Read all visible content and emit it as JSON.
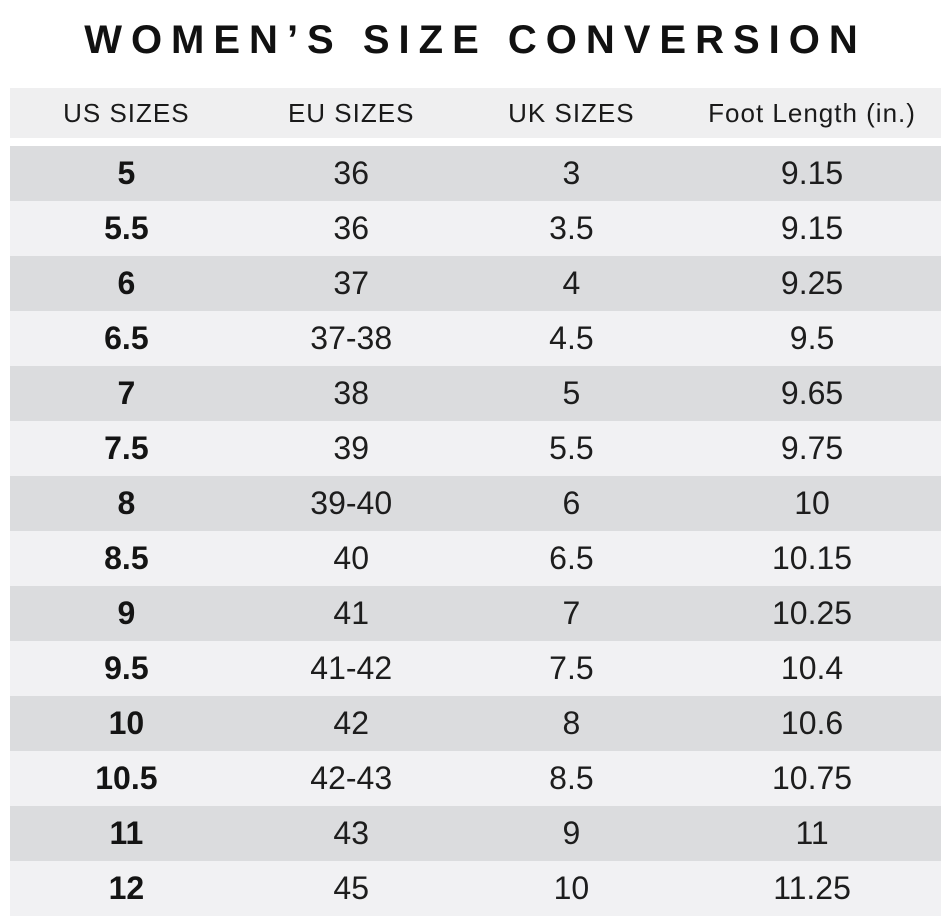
{
  "title": "WOMEN’S SIZE CONVERSION",
  "colors": {
    "header_bg": "#efeff0",
    "row_dark": "#dbdcde",
    "row_light": "#f1f1f3",
    "text": "#1d1d1d"
  },
  "table": {
    "columns": [
      "US SIZES",
      "EU SIZES",
      "UK SIZES",
      "Foot Length (in.)"
    ],
    "rows": [
      [
        "5",
        "36",
        "3",
        "9.15"
      ],
      [
        "5.5",
        "36",
        "3.5",
        "9.15"
      ],
      [
        "6",
        "37",
        "4",
        "9.25"
      ],
      [
        "6.5",
        "37-38",
        "4.5",
        "9.5"
      ],
      [
        "7",
        "38",
        "5",
        "9.65"
      ],
      [
        "7.5",
        "39",
        "5.5",
        "9.75"
      ],
      [
        "8",
        "39-40",
        "6",
        "10"
      ],
      [
        "8.5",
        "40",
        "6.5",
        "10.15"
      ],
      [
        "9",
        "41",
        "7",
        "10.25"
      ],
      [
        "9.5",
        "41-42",
        "7.5",
        "10.4"
      ],
      [
        "10",
        "42",
        "8",
        "10.6"
      ],
      [
        "10.5",
        "42-43",
        "8.5",
        "10.75"
      ],
      [
        "11",
        "43",
        "9",
        "11"
      ],
      [
        "12",
        "45",
        "10",
        "11.25"
      ]
    ]
  }
}
